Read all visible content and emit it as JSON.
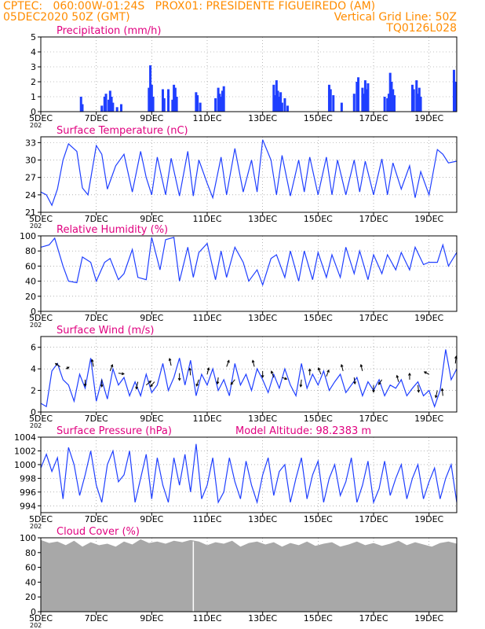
{
  "header": {
    "line1_left": "CPTEC:   060:00W-01:24S   PROX01: PRESIDENTE FIGUEIREDO (AM)",
    "line2_left": "05DEC2020 50Z (GMT)",
    "line2_right": "Vertical Grid Line: 50Z",
    "line3_right": "TQ0126L028",
    "color": "#ff8c00"
  },
  "colors": {
    "title": "#e0007f",
    "line": "#1f3fff",
    "bar": "#1f3fff",
    "cloud": "#a8a8a8",
    "grid": "#888888"
  },
  "x_axis": {
    "start_day": 5,
    "end_day": 20.0,
    "labels": [
      {
        "day": 5,
        "text": "5DEC"
      },
      {
        "day": 7,
        "text": "7DEC"
      },
      {
        "day": 9,
        "text": "9DEC"
      },
      {
        "day": 11,
        "text": "11DEC"
      },
      {
        "day": 13,
        "text": "13DEC"
      },
      {
        "day": 15,
        "text": "15DEC"
      },
      {
        "day": 17,
        "text": "17DEC"
      },
      {
        "day": 19,
        "text": "19DEC"
      }
    ],
    "year_fragment": "202"
  },
  "chart_data": [
    {
      "type": "bar",
      "title": "Precipitation (mm/h)",
      "ylim": [
        0,
        5
      ],
      "yticks": [
        0,
        1,
        2,
        3,
        4,
        5
      ],
      "x": [
        6.45,
        6.5,
        7.2,
        7.3,
        7.35,
        7.45,
        7.5,
        7.55,
        7.6,
        7.75,
        7.9,
        8.9,
        8.95,
        9.0,
        9.05,
        9.4,
        9.45,
        9.6,
        9.75,
        9.8,
        9.85,
        9.9,
        10.6,
        10.65,
        10.75,
        11.3,
        11.4,
        11.45,
        11.5,
        11.55,
        11.6,
        13.4,
        13.45,
        13.5,
        13.55,
        13.6,
        13.65,
        13.7,
        13.8,
        13.9,
        15.4,
        15.45,
        15.55,
        15.85,
        16.3,
        16.4,
        16.45,
        16.6,
        16.65,
        16.7,
        16.75,
        16.8,
        17.4,
        17.5,
        17.55,
        17.6,
        17.65,
        17.7,
        17.75,
        18.4,
        18.45,
        18.55,
        18.6,
        18.65,
        18.7,
        19.9,
        19.95
      ],
      "values": [
        1.0,
        0.5,
        0.4,
        1.0,
        1.2,
        0.8,
        1.4,
        1.0,
        0.6,
        0.3,
        0.5,
        1.6,
        3.1,
        1.8,
        1.0,
        1.5,
        0.9,
        1.5,
        0.8,
        1.8,
        1.6,
        1.0,
        1.3,
        1.1,
        0.6,
        0.9,
        1.6,
        1.2,
        1.0,
        1.4,
        1.7,
        1.8,
        1.1,
        2.1,
        1.4,
        1.0,
        1.3,
        0.6,
        0.9,
        0.4,
        1.8,
        1.5,
        1.1,
        0.6,
        1.2,
        2.0,
        2.3,
        1.6,
        1.2,
        2.1,
        1.5,
        1.9,
        1.0,
        0.9,
        1.2,
        2.6,
        2.0,
        1.5,
        1.1,
        1.8,
        1.5,
        2.1,
        1.2,
        1.6,
        1.0,
        2.8,
        2.0
      ]
    },
    {
      "type": "line",
      "title": "Surface Temperature (nC)",
      "ylim": [
        21,
        34
      ],
      "yticks": [
        21,
        24,
        27,
        30,
        33
      ],
      "x": [
        5.0,
        5.2,
        5.4,
        5.6,
        5.8,
        6.0,
        6.3,
        6.5,
        6.7,
        7.0,
        7.2,
        7.4,
        7.7,
        8.0,
        8.3,
        8.6,
        8.8,
        9.0,
        9.2,
        9.5,
        9.7,
        10.0,
        10.3,
        10.5,
        10.7,
        11.0,
        11.2,
        11.5,
        11.7,
        12.0,
        12.3,
        12.6,
        12.8,
        13.0,
        13.3,
        13.5,
        13.7,
        14.0,
        14.3,
        14.5,
        14.7,
        15.0,
        15.3,
        15.5,
        15.7,
        16.0,
        16.3,
        16.5,
        16.7,
        17.0,
        17.3,
        17.5,
        17.7,
        18.0,
        18.3,
        18.5,
        18.7,
        19.0,
        19.3,
        19.5,
        19.7,
        20.0
      ],
      "values": [
        24.5,
        24.0,
        22.2,
        25.0,
        30.0,
        32.8,
        31.5,
        25.2,
        24.0,
        32.5,
        31.0,
        25.0,
        29.0,
        31.0,
        24.5,
        31.5,
        27.0,
        24.0,
        30.5,
        24.0,
        30.3,
        23.8,
        31.5,
        23.8,
        30.0,
        26.0,
        23.5,
        30.5,
        24.0,
        32.0,
        24.5,
        30.0,
        24.5,
        33.5,
        30.0,
        24.0,
        30.8,
        23.8,
        30.0,
        24.5,
        30.5,
        24.0,
        30.5,
        24.0,
        30.0,
        24.0,
        30.0,
        24.5,
        29.8,
        24.0,
        30.2,
        24.0,
        29.5,
        25.0,
        29.0,
        23.5,
        28.0,
        24.0,
        31.8,
        31.0,
        29.5,
        29.8
      ]
    },
    {
      "type": "line",
      "title": "Relative Humidity (%)",
      "ylim": [
        0,
        100
      ],
      "yticks": [
        0,
        20,
        40,
        60,
        80,
        100
      ],
      "x": [
        5.0,
        5.3,
        5.5,
        5.8,
        6.0,
        6.3,
        6.5,
        6.8,
        7.0,
        7.3,
        7.5,
        7.8,
        8.0,
        8.3,
        8.5,
        8.8,
        9.0,
        9.3,
        9.5,
        9.8,
        10.0,
        10.3,
        10.5,
        10.7,
        11.0,
        11.3,
        11.5,
        11.7,
        12.0,
        12.3,
        12.5,
        12.8,
        13.0,
        13.3,
        13.5,
        13.8,
        14.0,
        14.3,
        14.5,
        14.8,
        15.0,
        15.3,
        15.5,
        15.8,
        16.0,
        16.3,
        16.5,
        16.8,
        17.0,
        17.3,
        17.5,
        17.8,
        18.0,
        18.3,
        18.5,
        18.8,
        19.0,
        19.3,
        19.5,
        19.7,
        20.0
      ],
      "values": [
        85,
        88,
        97,
        60,
        40,
        38,
        72,
        65,
        40,
        65,
        70,
        42,
        50,
        82,
        45,
        42,
        98,
        55,
        95,
        98,
        40,
        85,
        45,
        78,
        90,
        42,
        80,
        45,
        85,
        65,
        40,
        55,
        35,
        70,
        75,
        45,
        80,
        40,
        80,
        42,
        78,
        45,
        75,
        45,
        85,
        50,
        80,
        42,
        75,
        50,
        75,
        55,
        78,
        55,
        85,
        62,
        65,
        65,
        88,
        60,
        78
      ]
    },
    {
      "type": "line",
      "title": "Surface Wind (m/s)",
      "ylim": [
        0,
        7
      ],
      "yticks": [
        0,
        2,
        4,
        6
      ],
      "x": [
        5.0,
        5.2,
        5.4,
        5.6,
        5.8,
        6.0,
        6.2,
        6.4,
        6.6,
        6.8,
        7.0,
        7.2,
        7.4,
        7.6,
        7.8,
        8.0,
        8.2,
        8.4,
        8.6,
        8.8,
        9.0,
        9.2,
        9.4,
        9.6,
        9.8,
        10.0,
        10.2,
        10.4,
        10.6,
        10.8,
        11.0,
        11.2,
        11.4,
        11.6,
        11.8,
        12.0,
        12.2,
        12.4,
        12.6,
        12.8,
        13.0,
        13.2,
        13.4,
        13.6,
        13.8,
        14.0,
        14.2,
        14.4,
        14.6,
        14.8,
        15.0,
        15.2,
        15.4,
        15.6,
        15.8,
        16.0,
        16.2,
        16.4,
        16.6,
        16.8,
        17.0,
        17.2,
        17.4,
        17.6,
        17.8,
        18.0,
        18.2,
        18.4,
        18.6,
        18.8,
        19.0,
        19.2,
        19.4,
        19.6,
        19.8,
        20.0
      ],
      "values": [
        0.8,
        0.5,
        3.8,
        4.5,
        3.0,
        2.5,
        1.0,
        3.5,
        2.2,
        5.0,
        1.0,
        3.0,
        1.2,
        4.0,
        2.5,
        3.2,
        1.5,
        2.8,
        1.5,
        3.5,
        1.8,
        2.5,
        4.5,
        2.0,
        3.2,
        5.0,
        2.5,
        4.8,
        1.5,
        3.5,
        2.5,
        4.0,
        2.0,
        3.0,
        1.5,
        4.5,
        2.5,
        3.5,
        2.0,
        4.0,
        3.0,
        1.8,
        3.5,
        2.2,
        4.0,
        2.5,
        1.5,
        4.5,
        2.2,
        3.5,
        2.5,
        3.8,
        2.0,
        2.8,
        3.5,
        1.8,
        2.5,
        3.2,
        1.5,
        2.8,
        2.0,
        3.0,
        1.5,
        2.5,
        2.2,
        3.0,
        1.5,
        2.2,
        2.8,
        1.5,
        2.0,
        0.5,
        2.0,
        5.8,
        3.0,
        4.0
      ],
      "arrows": [
        {
          "day": 5.7,
          "v": 4.2,
          "dx": -6,
          "dy": -4
        },
        {
          "day": 5.9,
          "v": 4.0,
          "dx": 4,
          "dy": -2
        },
        {
          "day": 6.6,
          "v": 3.0,
          "dx": 0,
          "dy": 8
        },
        {
          "day": 6.9,
          "v": 4.2,
          "dx": -2,
          "dy": -9
        },
        {
          "day": 7.2,
          "v": 3.0,
          "dx": 0,
          "dy": 9
        },
        {
          "day": 7.5,
          "v": 3.8,
          "dx": 3,
          "dy": -8
        },
        {
          "day": 7.8,
          "v": 3.6,
          "dx": 7,
          "dy": 1
        },
        {
          "day": 8.5,
          "v": 2.8,
          "dx": -2,
          "dy": 9
        },
        {
          "day": 8.8,
          "v": 2.5,
          "dx": 6,
          "dy": -5
        },
        {
          "day": 9.1,
          "v": 2.8,
          "dx": -5,
          "dy": 6
        },
        {
          "day": 9.7,
          "v": 4.3,
          "dx": -2,
          "dy": -9
        },
        {
          "day": 10.0,
          "v": 3.6,
          "dx": 0,
          "dy": 9
        },
        {
          "day": 10.4,
          "v": 3.4,
          "dx": -1,
          "dy": -9
        },
        {
          "day": 10.7,
          "v": 3.0,
          "dx": -3,
          "dy": 8
        },
        {
          "day": 11.0,
          "v": 3.5,
          "dx": 2,
          "dy": -8
        },
        {
          "day": 11.4,
          "v": 3.2,
          "dx": -1,
          "dy": 8
        },
        {
          "day": 11.7,
          "v": 4.2,
          "dx": 3,
          "dy": -8
        },
        {
          "day": 12.0,
          "v": 3.0,
          "dx": -5,
          "dy": 6
        },
        {
          "day": 12.7,
          "v": 4.2,
          "dx": -2,
          "dy": -8
        },
        {
          "day": 13.0,
          "v": 3.8,
          "dx": 0,
          "dy": 8
        },
        {
          "day": 13.4,
          "v": 3.2,
          "dx": -3,
          "dy": -8
        },
        {
          "day": 13.7,
          "v": 3.2,
          "dx": 6,
          "dy": 2
        },
        {
          "day": 14.4,
          "v": 3.0,
          "dx": -1,
          "dy": 9
        },
        {
          "day": 14.7,
          "v": 3.4,
          "dx": 0,
          "dy": -8
        },
        {
          "day": 15.1,
          "v": 3.5,
          "dx": -3,
          "dy": -8
        },
        {
          "day": 15.3,
          "v": 3.3,
          "dx": 3,
          "dy": -8
        },
        {
          "day": 15.9,
          "v": 3.8,
          "dx": -2,
          "dy": -8
        },
        {
          "day": 16.3,
          "v": 3.2,
          "dx": 1,
          "dy": 8
        },
        {
          "day": 16.6,
          "v": 3.8,
          "dx": -2,
          "dy": -8
        },
        {
          "day": 17.0,
          "v": 2.5,
          "dx": 0,
          "dy": 9
        },
        {
          "day": 17.3,
          "v": 3.0,
          "dx": -4,
          "dy": 6
        },
        {
          "day": 17.9,
          "v": 2.8,
          "dx": -2,
          "dy": -8
        },
        {
          "day": 18.3,
          "v": 3.0,
          "dx": 0,
          "dy": -8
        },
        {
          "day": 18.6,
          "v": 2.5,
          "dx": 1,
          "dy": 9
        },
        {
          "day": 19.0,
          "v": 3.5,
          "dx": -6,
          "dy": -3
        },
        {
          "day": 19.3,
          "v": 2.0,
          "dx": -2,
          "dy": 9
        },
        {
          "day": 19.5,
          "v": 1.5,
          "dx": -1,
          "dy": -9
        },
        {
          "day": 19.95,
          "v": 4.5,
          "dx": 1,
          "dy": -9
        }
      ]
    },
    {
      "type": "line",
      "title": "Surface Pressure (hPa)",
      "subtitle": "Model Altitude: 98.2383 m",
      "ylim": [
        993,
        1004
      ],
      "yticks": [
        994,
        996,
        998,
        1000,
        1002,
        1004
      ],
      "x": [
        5.0,
        5.2,
        5.4,
        5.6,
        5.8,
        6.0,
        6.2,
        6.4,
        6.6,
        6.8,
        7.0,
        7.2,
        7.4,
        7.6,
        7.8,
        8.0,
        8.2,
        8.4,
        8.6,
        8.8,
        9.0,
        9.2,
        9.4,
        9.6,
        9.8,
        10.0,
        10.2,
        10.4,
        10.6,
        10.8,
        11.0,
        11.2,
        11.4,
        11.6,
        11.8,
        12.0,
        12.2,
        12.4,
        12.6,
        12.8,
        13.0,
        13.2,
        13.4,
        13.6,
        13.8,
        14.0,
        14.2,
        14.4,
        14.6,
        14.8,
        15.0,
        15.2,
        15.4,
        15.6,
        15.8,
        16.0,
        16.2,
        16.4,
        16.6,
        16.8,
        17.0,
        17.2,
        17.4,
        17.6,
        17.8,
        18.0,
        18.2,
        18.4,
        18.6,
        18.8,
        19.0,
        19.2,
        19.4,
        19.6,
        19.8,
        20.0
      ],
      "values": [
        999.5,
        1001.5,
        999.0,
        1001.0,
        995.0,
        1002.5,
        1000.0,
        995.5,
        998.5,
        1002.0,
        997.0,
        994.5,
        1000.0,
        1002.0,
        997.5,
        998.5,
        1002.0,
        994.5,
        998.0,
        1001.5,
        995.0,
        1001.0,
        997.0,
        994.5,
        1001.0,
        997.0,
        1001.5,
        996.0,
        1003.0,
        995.0,
        997.0,
        1001.0,
        994.5,
        996.0,
        1001.0,
        997.5,
        995.0,
        1000.5,
        997.0,
        994.5,
        998.5,
        1001.0,
        995.5,
        999.0,
        1000.0,
        994.5,
        998.0,
        1001.0,
        995.0,
        998.5,
        1000.5,
        994.5,
        998.0,
        1000.0,
        995.5,
        997.5,
        1001.0,
        994.5,
        997.0,
        1000.5,
        994.5,
        996.5,
        1000.5,
        995.5,
        998.0,
        1000.0,
        995.0,
        998.0,
        1000.0,
        995.0,
        997.5,
        999.5,
        995.0,
        998.0,
        1000.0,
        994.5
      ]
    },
    {
      "type": "area",
      "title": "Cloud Cover (%)",
      "ylim": [
        0,
        100
      ],
      "yticks": [
        0,
        20,
        40,
        60,
        80,
        100
      ],
      "x": [
        5.0,
        5.3,
        5.6,
        5.9,
        6.2,
        6.5,
        6.8,
        7.1,
        7.4,
        7.7,
        8.0,
        8.3,
        8.6,
        8.9,
        9.2,
        9.5,
        9.8,
        10.1,
        10.4,
        10.7,
        11.0,
        11.3,
        11.6,
        11.9,
        12.2,
        12.5,
        12.8,
        13.1,
        13.4,
        13.7,
        14.0,
        14.3,
        14.6,
        14.9,
        15.2,
        15.5,
        15.8,
        16.1,
        16.4,
        16.7,
        17.0,
        17.3,
        17.6,
        17.9,
        18.2,
        18.5,
        18.8,
        19.1,
        19.4,
        19.7,
        20.0
      ],
      "values": [
        97,
        93,
        95,
        90,
        96,
        88,
        94,
        90,
        92,
        88,
        95,
        91,
        98,
        93,
        95,
        92,
        96,
        94,
        97,
        95,
        90,
        94,
        92,
        96,
        88,
        93,
        95,
        91,
        94,
        88,
        93,
        90,
        95,
        89,
        92,
        94,
        88,
        91,
        95,
        90,
        93,
        89,
        92,
        96,
        90,
        94,
        91,
        88,
        93,
        95,
        92
      ]
    }
  ]
}
